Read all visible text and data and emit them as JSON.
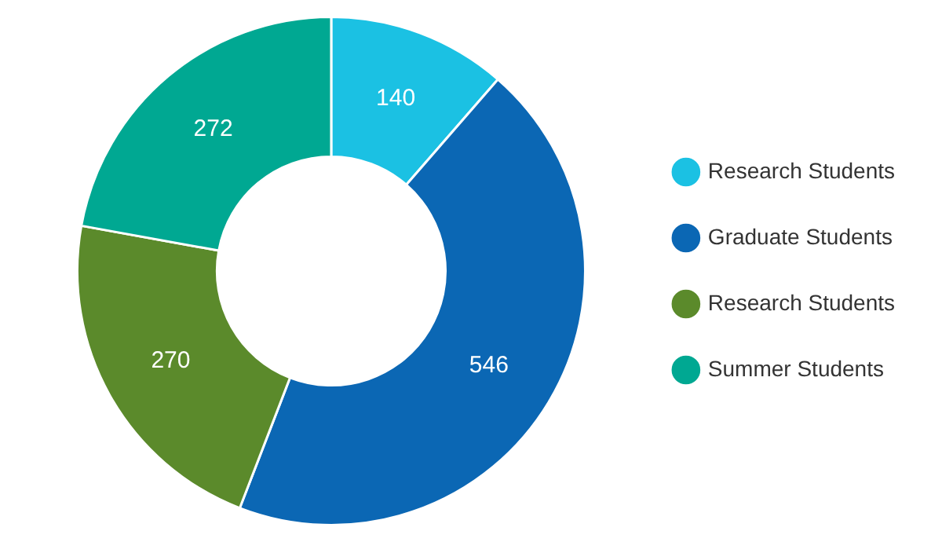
{
  "chart_data": {
    "type": "donut",
    "categories": [
      "Research Students",
      "Graduate Students",
      "Research Students",
      "Summer Students"
    ],
    "values": [
      140,
      546,
      270,
      272
    ],
    "colors": [
      "#1bc1e3",
      "#0b67b4",
      "#5b8a2b",
      "#00a892"
    ],
    "data_labels": true,
    "legend": "right"
  }
}
